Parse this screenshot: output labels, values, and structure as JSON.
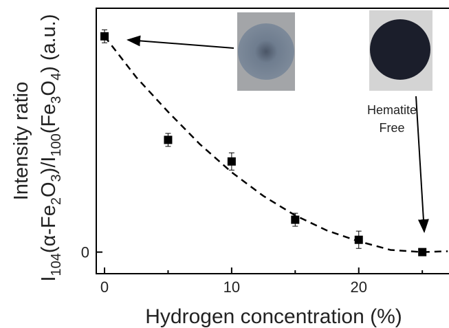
{
  "chart_data": {
    "type": "scatter",
    "x_label": "Hydrogen concentration (%)",
    "y_label_lines": [
      "Intensity ratio",
      [
        "I",
        "104",
        "(α-Fe",
        "2",
        "O",
        "3",
        ")/I",
        "100",
        "(Fe",
        "3",
        "O",
        "4",
        ") (a.u.)"
      ]
    ],
    "annotations": [
      "Hematite",
      "Free"
    ],
    "xlim": [
      -0.65,
      27.1
    ],
    "xticks": [
      0,
      10,
      20
    ],
    "xminor": [
      5,
      15,
      25
    ],
    "ylim": [
      -0.1,
      1.13
    ],
    "yticks": [
      0
    ],
    "series": [
      {
        "style": "markers",
        "color": "#000000",
        "x": [
          0,
          5,
          10,
          15,
          20,
          25
        ],
        "values": [
          1.0,
          0.52,
          0.42,
          0.15,
          0.057,
          0.0
        ],
        "errors": [
          0.03,
          0.03,
          0.04,
          0.03,
          0.04,
          0.0
        ]
      },
      {
        "style": "dashed",
        "color": "#000000",
        "x": [
          0,
          2.5,
          5,
          7.5,
          10,
          12.5,
          15,
          17.5,
          20,
          22.5,
          25,
          27
        ],
        "values": [
          1.0,
          0.81,
          0.65,
          0.5,
          0.37,
          0.26,
          0.17,
          0.1,
          0.05,
          0.01,
          0.0,
          0.004
        ]
      }
    ]
  }
}
